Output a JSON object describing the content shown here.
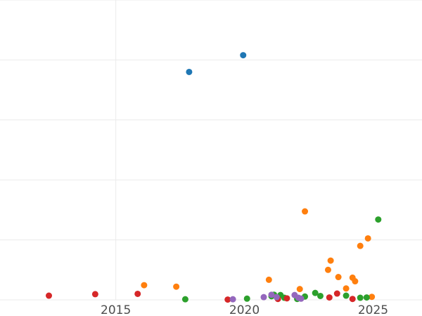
{
  "chart_data": {
    "type": "scatter",
    "title": "",
    "xlabel": "",
    "ylabel": "",
    "x_domain": [
      2010.5,
      2026.9
    ],
    "y_domain": [
      0,
      1000
    ],
    "x_ticks": [
      2015,
      2020,
      2025
    ],
    "x_tick_labels": [
      "2015",
      "2020",
      "2025"
    ],
    "y_gridlines": [
      0,
      200,
      400,
      600,
      800,
      1000
    ],
    "x_gridlines": [
      2015
    ],
    "grid": true,
    "legend": "none",
    "series": [
      {
        "color": "#1f77b4",
        "points": [
          [
            2017.85,
            760
          ],
          [
            2019.95,
            816
          ]
        ]
      },
      {
        "color": "#ff7f0e",
        "points": [
          [
            2016.1,
            49
          ],
          [
            2017.35,
            44
          ],
          [
            2020.95,
            67
          ],
          [
            2022.15,
            36
          ],
          [
            2022.35,
            295
          ],
          [
            2023.25,
            100
          ],
          [
            2023.35,
            131
          ],
          [
            2023.65,
            76
          ],
          [
            2023.95,
            38
          ],
          [
            2024.2,
            74
          ],
          [
            2024.3,
            62
          ],
          [
            2024.5,
            180
          ],
          [
            2024.8,
            205
          ],
          [
            2024.95,
            10
          ]
        ]
      },
      {
        "color": "#2ca02c",
        "points": [
          [
            2017.7,
            2
          ],
          [
            2020.1,
            4
          ],
          [
            2021.05,
            12
          ],
          [
            2021.15,
            17
          ],
          [
            2021.4,
            16
          ],
          [
            2021.55,
            7
          ],
          [
            2022.05,
            3
          ],
          [
            2022.35,
            11
          ],
          [
            2022.75,
            23
          ],
          [
            2022.95,
            13
          ],
          [
            2023.95,
            14
          ],
          [
            2024.5,
            7
          ],
          [
            2024.75,
            8
          ],
          [
            2025.2,
            268
          ]
        ]
      },
      {
        "color": "#d62728",
        "points": [
          [
            2012.4,
            14
          ],
          [
            2014.2,
            19
          ],
          [
            2015.85,
            20
          ],
          [
            2019.35,
            1
          ],
          [
            2021.3,
            3
          ],
          [
            2021.65,
            5
          ],
          [
            2023.3,
            8
          ],
          [
            2023.6,
            21
          ],
          [
            2024.2,
            3
          ]
        ]
      },
      {
        "color": "#9467bd",
        "points": [
          [
            2019.55,
            2
          ],
          [
            2020.75,
            9
          ],
          [
            2021.05,
            17
          ],
          [
            2021.25,
            9
          ],
          [
            2021.95,
            16
          ],
          [
            2022.1,
            7
          ],
          [
            2022.2,
            4
          ]
        ]
      }
    ]
  }
}
